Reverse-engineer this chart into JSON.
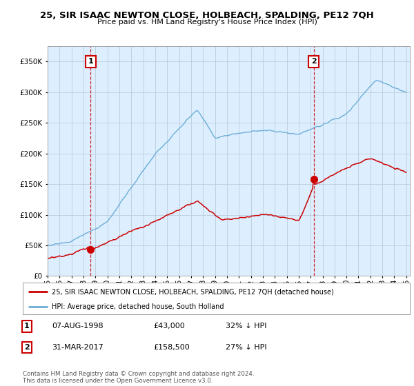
{
  "title": "25, SIR ISAAC NEWTON CLOSE, HOLBEACH, SPALDING, PE12 7QH",
  "subtitle": "Price paid vs. HM Land Registry's House Price Index (HPI)",
  "legend_line1": "25, SIR ISAAC NEWTON CLOSE, HOLBEACH, SPALDING, PE12 7QH (detached house)",
  "legend_line2": "HPI: Average price, detached house, South Holland",
  "table_row1": [
    "1",
    "07-AUG-1998",
    "£43,000",
    "32% ↓ HPI"
  ],
  "table_row2": [
    "2",
    "31-MAR-2017",
    "£158,500",
    "27% ↓ HPI"
  ],
  "footer": "Contains HM Land Registry data © Crown copyright and database right 2024.\nThis data is licensed under the Open Government Licence v3.0.",
  "marker1_year": 1998.6,
  "marker1_value": 43000,
  "marker2_year": 2017.25,
  "marker2_value": 158500,
  "ylim": [
    0,
    375000
  ],
  "yticks": [
    0,
    50000,
    100000,
    150000,
    200000,
    250000,
    300000,
    350000
  ],
  "hpi_color": "#6baed6",
  "price_color": "#cc0000",
  "marker_color": "#cc0000",
  "chart_bg_color": "#ddeeff",
  "background_color": "#ffffff",
  "grid_color": "#bbccdd",
  "annotation_box_color": "#cc0000"
}
